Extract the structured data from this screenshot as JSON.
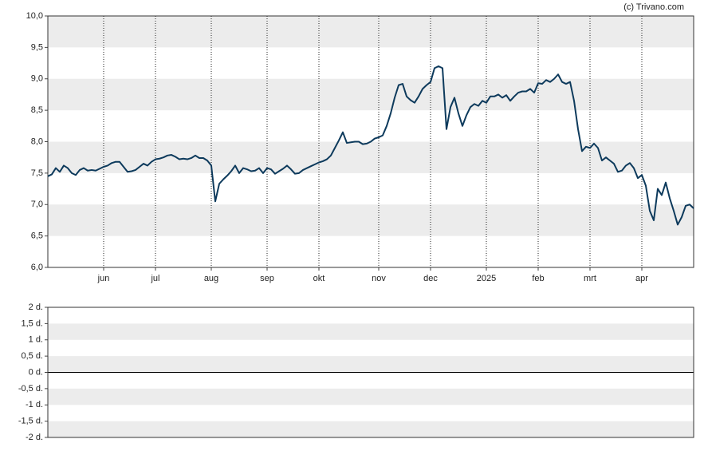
{
  "chart_data": [
    {
      "type": "line",
      "annotation": "(c) Trivano.com",
      "color": "#0d3a5c",
      "grid": true,
      "ylim": [
        6,
        10
      ],
      "yticks": [
        {
          "value": 10,
          "label": "10,0"
        },
        {
          "value": 9.5,
          "label": "9,5"
        },
        {
          "value": 9,
          "label": "9,0"
        },
        {
          "value": 8.5,
          "label": "8,5"
        },
        {
          "value": 8,
          "label": "8,0"
        },
        {
          "value": 7.5,
          "label": "7,5"
        },
        {
          "value": 7,
          "label": "7,0"
        },
        {
          "value": 6.5,
          "label": "6,5"
        },
        {
          "value": 6,
          "label": "6,0"
        }
      ],
      "categories": [
        null,
        null,
        null,
        null,
        null,
        null,
        null,
        null,
        null,
        null,
        null,
        null,
        null,
        null,
        "jun",
        null,
        null,
        null,
        null,
        null,
        null,
        null,
        null,
        null,
        null,
        null,
        null,
        "jul",
        null,
        null,
        null,
        null,
        null,
        null,
        null,
        null,
        null,
        null,
        null,
        null,
        null,
        "aug",
        null,
        null,
        null,
        null,
        null,
        null,
        null,
        null,
        null,
        null,
        null,
        null,
        null,
        "sep",
        null,
        null,
        null,
        null,
        null,
        null,
        null,
        null,
        null,
        null,
        null,
        null,
        "okt",
        null,
        null,
        null,
        null,
        null,
        null,
        null,
        null,
        null,
        null,
        null,
        null,
        null,
        null,
        "nov",
        null,
        null,
        null,
        null,
        null,
        null,
        null,
        null,
        null,
        null,
        null,
        null,
        "dec",
        null,
        null,
        null,
        null,
        null,
        null,
        null,
        null,
        null,
        null,
        null,
        null,
        null,
        "2025",
        null,
        null,
        null,
        null,
        null,
        null,
        null,
        null,
        null,
        null,
        null,
        null,
        "feb",
        null,
        null,
        null,
        null,
        null,
        null,
        null,
        null,
        null,
        null,
        null,
        null,
        "mrt",
        null,
        null,
        null,
        null,
        null,
        null,
        null,
        null,
        null,
        null,
        null,
        null,
        "apr",
        null,
        null,
        null,
        null,
        null,
        null,
        null,
        null,
        null,
        null,
        null,
        null,
        null
      ],
      "values": [
        7.45,
        7.48,
        7.58,
        7.52,
        7.62,
        7.58,
        7.5,
        7.47,
        7.55,
        7.58,
        7.54,
        7.55,
        7.54,
        7.57,
        7.6,
        7.62,
        7.66,
        7.68,
        7.68,
        7.6,
        7.52,
        7.53,
        7.55,
        7.6,
        7.65,
        7.62,
        7.68,
        7.72,
        7.73,
        7.75,
        7.78,
        7.79,
        7.76,
        7.72,
        7.73,
        7.72,
        7.74,
        7.78,
        7.74,
        7.74,
        7.7,
        7.62,
        7.05,
        7.33,
        7.4,
        7.46,
        7.53,
        7.62,
        7.5,
        7.58,
        7.56,
        7.53,
        7.54,
        7.58,
        7.5,
        7.58,
        7.56,
        7.49,
        7.53,
        7.57,
        7.62,
        7.56,
        7.49,
        7.5,
        7.55,
        7.58,
        7.61,
        7.64,
        7.67,
        7.69,
        7.72,
        7.78,
        7.9,
        8.02,
        8.15,
        7.98,
        7.99,
        8.0,
        8.0,
        7.96,
        7.97,
        8.0,
        8.05,
        8.07,
        8.1,
        8.25,
        8.45,
        8.7,
        8.9,
        8.92,
        8.72,
        8.66,
        8.62,
        8.72,
        8.84,
        8.9,
        8.95,
        9.17,
        9.2,
        9.17,
        8.2,
        8.55,
        8.7,
        8.45,
        8.25,
        8.42,
        8.55,
        8.6,
        8.57,
        8.65,
        8.62,
        8.72,
        8.72,
        8.75,
        8.7,
        8.74,
        8.65,
        8.72,
        8.78,
        8.8,
        8.8,
        8.84,
        8.78,
        8.93,
        8.92,
        8.98,
        8.95,
        9.0,
        9.07,
        8.95,
        8.92,
        8.95,
        8.65,
        8.2,
        7.85,
        7.92,
        7.9,
        7.97,
        7.9,
        7.7,
        7.75,
        7.7,
        7.65,
        7.52,
        7.54,
        7.62,
        7.66,
        7.58,
        7.42,
        7.47,
        7.3,
        6.9,
        6.75,
        7.25,
        7.15,
        7.35,
        7.1,
        6.9,
        6.68,
        6.8,
        6.98,
        7.0,
        6.94
      ]
    },
    {
      "type": "line",
      "grid": true,
      "ylim": [
        -2,
        2
      ],
      "yticks": [
        {
          "value": 2,
          "label": "2 d."
        },
        {
          "value": 1.5,
          "label": "1,5 d."
        },
        {
          "value": 1,
          "label": "1 d."
        },
        {
          "value": 0.5,
          "label": "0,5 d."
        },
        {
          "value": 0,
          "label": "0 d."
        },
        {
          "value": -0.5,
          "label": "-0,5 d."
        },
        {
          "value": -1,
          "label": "-1 d."
        },
        {
          "value": -1.5,
          "label": "-1,5 d."
        },
        {
          "value": -2,
          "label": "-2 d."
        }
      ]
    }
  ]
}
